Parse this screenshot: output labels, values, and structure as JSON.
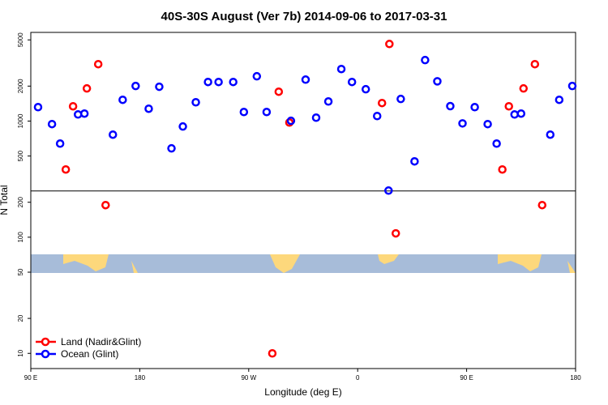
{
  "chart_data": {
    "type": "scatter",
    "title": "40S-30S August (Ver 7b)   2014-09-06 to 2017-03-31",
    "x_label": "Longitude (deg E)",
    "y_label": "N Total",
    "log_y": true,
    "xlim": [
      90,
      540
    ],
    "ylim": [
      7.4,
      5800
    ],
    "xticks": [
      {
        "value": 90,
        "label": "90 E"
      },
      180,
      {
        "value": 270,
        "label": "90 W"
      },
      {
        "value": 360,
        "label": "0"
      },
      {
        "value": 450,
        "label": "90 E"
      },
      {
        "value": 540,
        "label": "180"
      }
    ],
    "yticks": [
      10,
      20,
      50,
      100,
      200,
      500,
      1000,
      2000,
      5000
    ],
    "hline": 250,
    "legend": "bottom-left",
    "series": [
      {
        "name": "Land (Nadir&Glint)",
        "color": "#ff0000",
        "x": [
          124.9,
          118.9,
          136.3,
          145.7,
          151.8,
          294.8,
          303.6,
          289.5,
          380.1,
          386.2,
          391.5,
          479.5,
          484.9,
          497,
          506.4,
          512.4
        ],
        "values": [
          1340,
          383,
          1910,
          3090,
          189,
          1790,
          972,
          10,
          1430,
          4610,
          108,
          383,
          1340,
          1910,
          3090,
          189
        ]
      },
      {
        "name": "Ocean (Glint)",
        "color": "#0000ff",
        "x": [
          96,
          107.5,
          114.2,
          129,
          134.3,
          157.8,
          165.9,
          176.6,
          187.4,
          196.1,
          206.2,
          215.6,
          226.3,
          236.4,
          245.1,
          257.2,
          266,
          276.7,
          284.8,
          304.9,
          317,
          325.7,
          335.8,
          346.5,
          355.3,
          366.7,
          376.1,
          385.5,
          395.6,
          407,
          415.7,
          425.8,
          436.5,
          446.6,
          456.7,
          467.4,
          474.8,
          489.6,
          495,
          519.1,
          526.5,
          537.3
        ],
        "values": [
          1318,
          942,
          640,
          1140,
          1160,
          764,
          1525,
          2005,
          1277,
          1975,
          582,
          898,
          1452,
          2170,
          2170,
          2170,
          1197,
          2430,
          1197,
          1005,
          2275,
          1070,
          1475,
          2805,
          2170,
          1880,
          1105,
          252,
          1550,
          450,
          3350,
          2200,
          1345,
          955,
          1318,
          942,
          640,
          1140,
          1160,
          764,
          1525,
          2005
        ]
      }
    ]
  }
}
